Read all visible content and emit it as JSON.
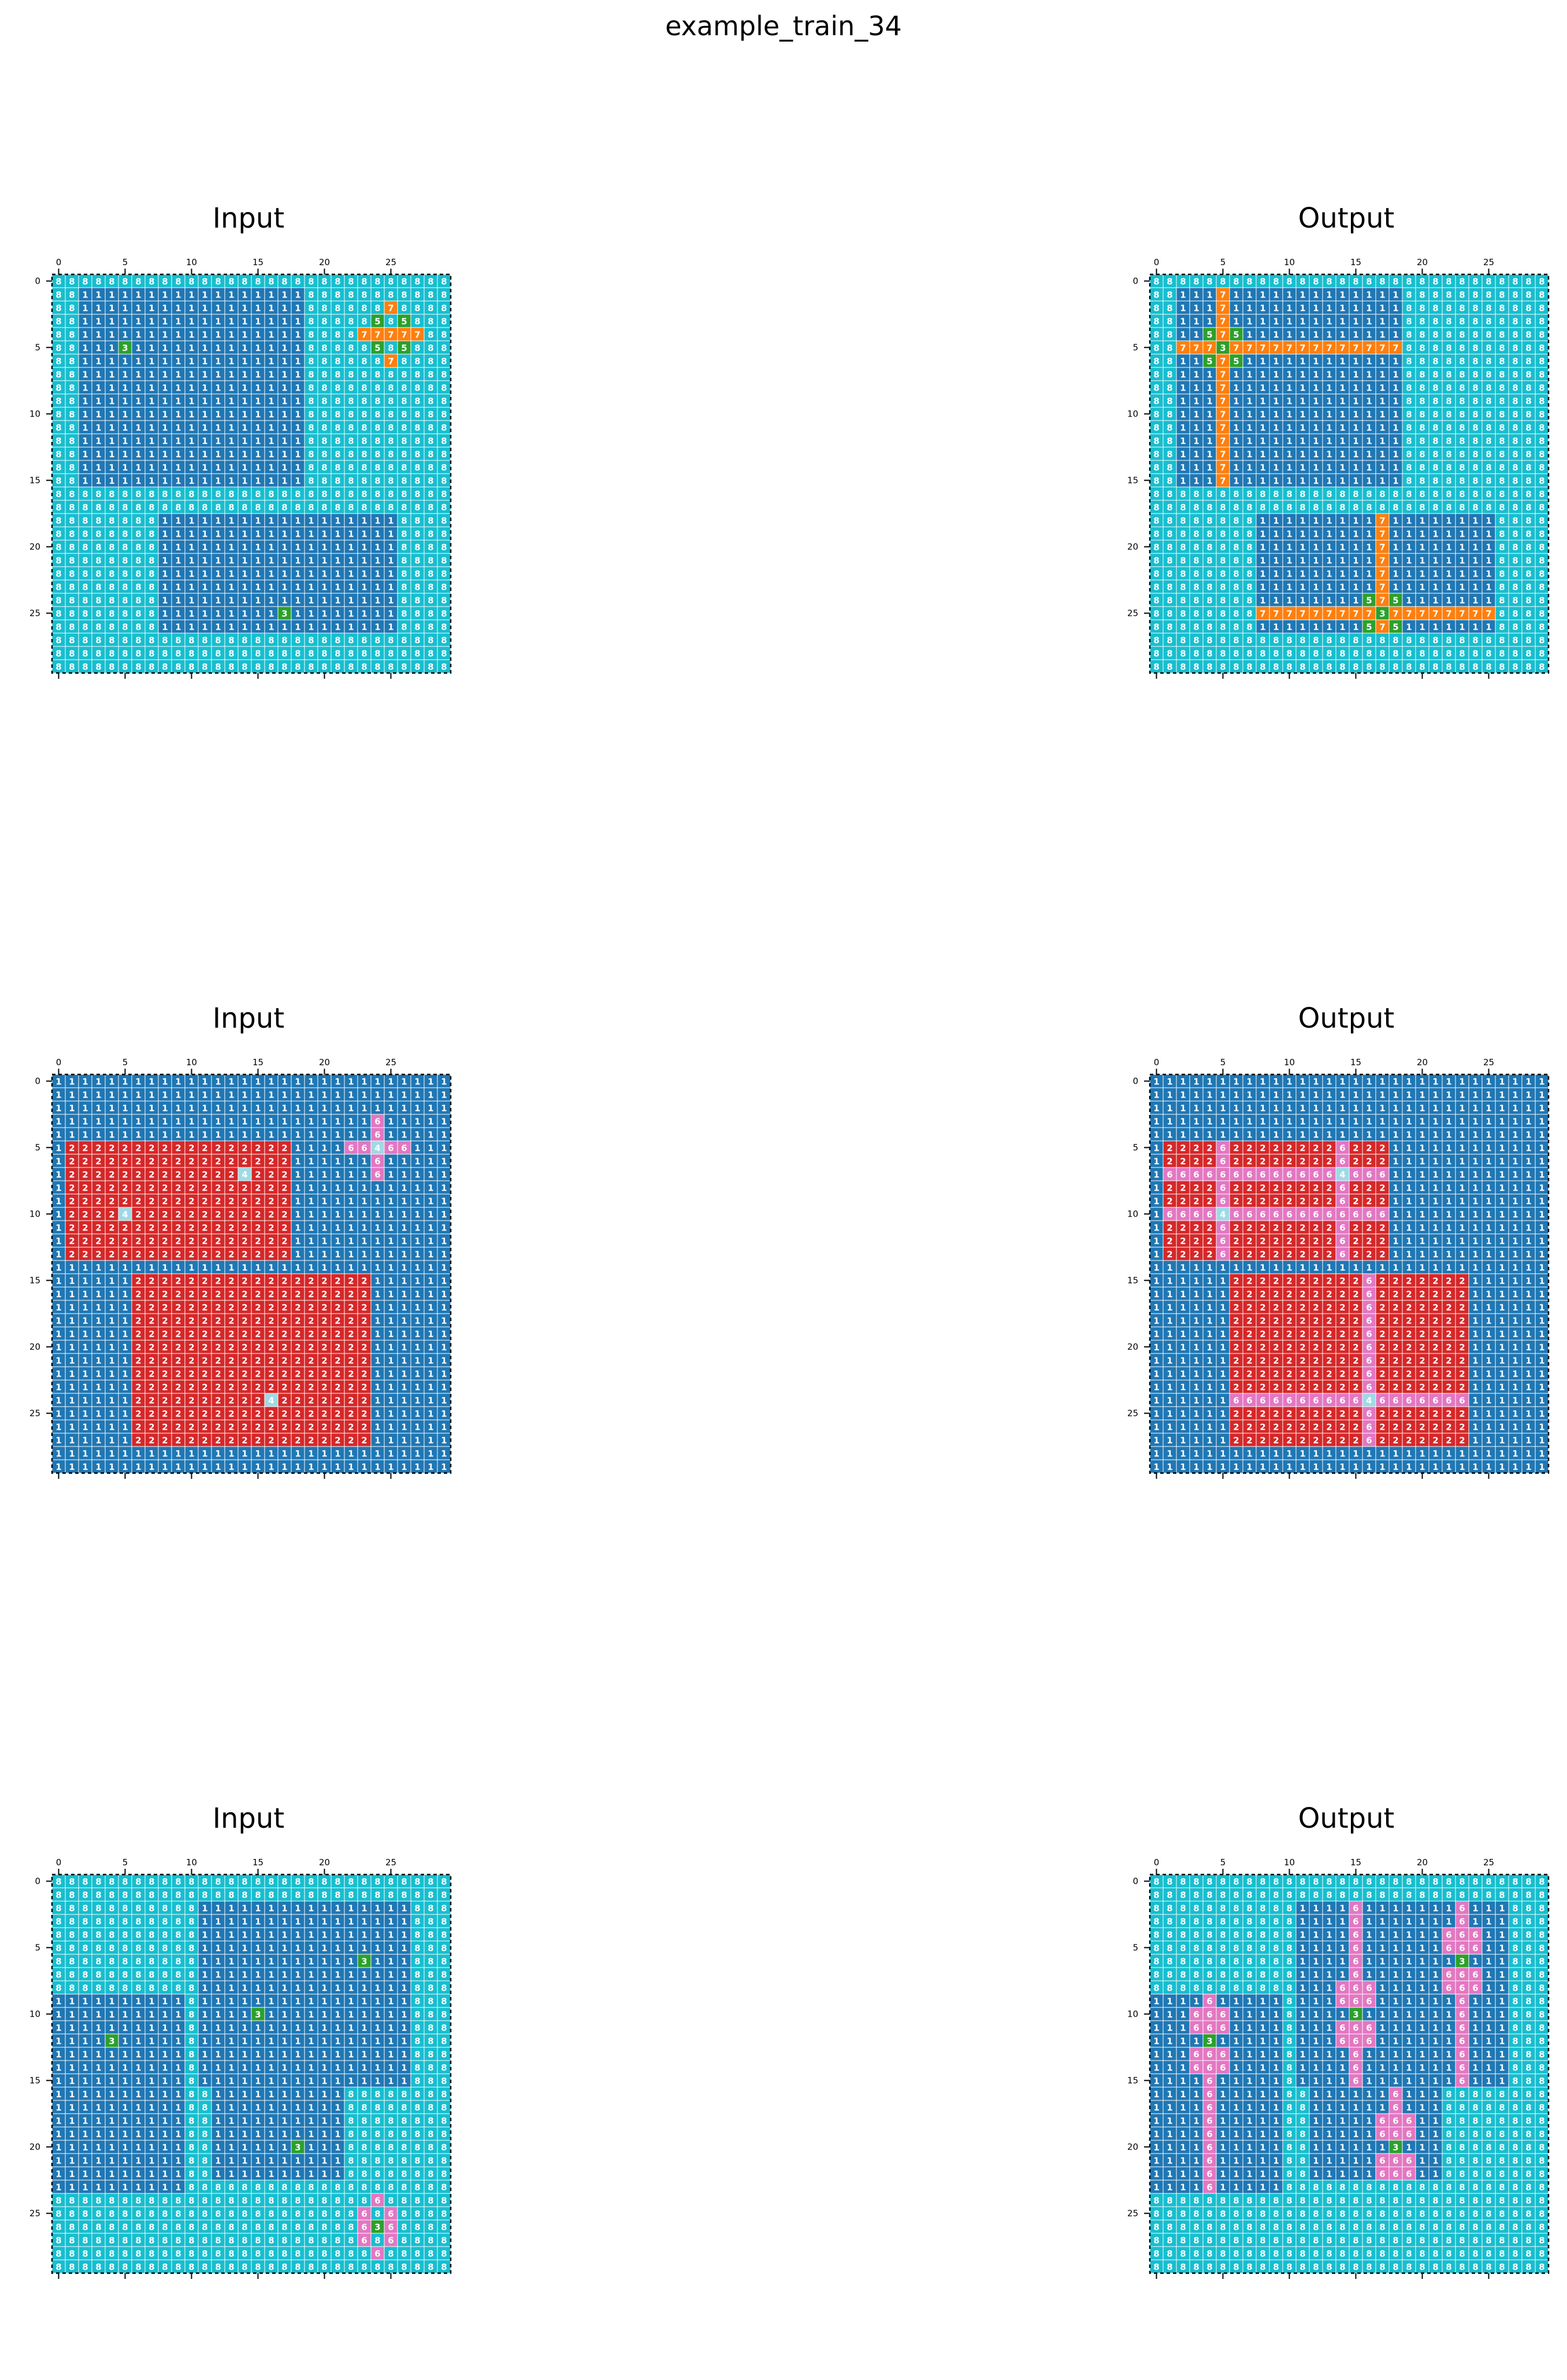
{
  "figure": {
    "title": "example_train_34"
  },
  "palette": {
    "1": "#1f77b4",
    "2": "#d62728",
    "3": "#2ca02c",
    "4": "#9edae5",
    "5": "#2ca02c",
    "6": "#e377c2",
    "7": "#ff7f0e",
    "8": "#17becf"
  },
  "tick_labels": [
    "0",
    "5",
    "10",
    "15",
    "20",
    "25"
  ],
  "panels": [
    {
      "title": "Input",
      "rows": 30,
      "cols": 30,
      "bg": 8,
      "rects": [
        [
          1,
          2,
          15,
          18,
          1
        ],
        [
          18,
          8,
          26,
          25,
          1
        ]
      ],
      "cells": [
        [
          5,
          5,
          3
        ],
        [
          25,
          17,
          3
        ],
        [
          2,
          25,
          7
        ],
        [
          3,
          24,
          5
        ],
        [
          3,
          26,
          5
        ],
        [
          4,
          23,
          7
        ],
        [
          4,
          24,
          7
        ],
        [
          4,
          25,
          7
        ],
        [
          4,
          26,
          7
        ],
        [
          4,
          27,
          7
        ],
        [
          5,
          24,
          5
        ],
        [
          5,
          26,
          5
        ],
        [
          6,
          25,
          7
        ]
      ]
    },
    {
      "title": "Output",
      "rows": 30,
      "cols": 30,
      "bg": 8,
      "rects": [
        [
          1,
          2,
          15,
          18,
          1
        ],
        [
          18,
          8,
          26,
          25,
          1
        ],
        [
          1,
          5,
          15,
          5,
          7
        ],
        [
          5,
          2,
          5,
          18,
          7
        ],
        [
          18,
          17,
          26,
          17,
          7
        ],
        [
          25,
          8,
          25,
          25,
          7
        ]
      ],
      "cells": [
        [
          4,
          4,
          5
        ],
        [
          4,
          6,
          5
        ],
        [
          6,
          4,
          5
        ],
        [
          6,
          6,
          5
        ],
        [
          5,
          5,
          3
        ],
        [
          24,
          16,
          5
        ],
        [
          24,
          18,
          5
        ],
        [
          26,
          16,
          5
        ],
        [
          26,
          18,
          5
        ],
        [
          25,
          17,
          3
        ]
      ]
    },
    {
      "title": "Input",
      "rows": 30,
      "cols": 30,
      "bg": 1,
      "rects": [
        [
          5,
          1,
          13,
          17,
          2
        ],
        [
          15,
          6,
          27,
          23,
          2
        ]
      ],
      "cells": [
        [
          7,
          14,
          4
        ],
        [
          10,
          5,
          4
        ],
        [
          24,
          16,
          4
        ],
        [
          3,
          24,
          6
        ],
        [
          4,
          24,
          6
        ],
        [
          5,
          22,
          6
        ],
        [
          5,
          23,
          6
        ],
        [
          5,
          24,
          4
        ],
        [
          5,
          25,
          6
        ],
        [
          5,
          26,
          6
        ],
        [
          6,
          24,
          6
        ],
        [
          7,
          24,
          6
        ]
      ]
    },
    {
      "title": "Output",
      "rows": 30,
      "cols": 30,
      "bg": 1,
      "rects": [
        [
          5,
          1,
          13,
          17,
          2
        ],
        [
          15,
          6,
          27,
          23,
          2
        ],
        [
          5,
          14,
          13,
          14,
          6
        ],
        [
          7,
          1,
          7,
          17,
          6
        ],
        [
          5,
          5,
          13,
          5,
          6
        ],
        [
          10,
          1,
          10,
          17,
          6
        ],
        [
          15,
          16,
          27,
          16,
          6
        ],
        [
          24,
          6,
          24,
          23,
          6
        ]
      ],
      "cells": [
        [
          7,
          14,
          4
        ],
        [
          10,
          5,
          4
        ],
        [
          24,
          16,
          4
        ]
      ]
    },
    {
      "title": "Input",
      "rows": 30,
      "cols": 30,
      "bg": 8,
      "rects": [
        [
          2,
          11,
          15,
          26,
          1
        ],
        [
          9,
          0,
          23,
          9,
          1
        ],
        [
          16,
          12,
          22,
          21,
          1
        ]
      ],
      "cells": [
        [
          6,
          23,
          3
        ],
        [
          10,
          15,
          3
        ],
        [
          12,
          4,
          3
        ],
        [
          20,
          18,
          3
        ],
        [
          24,
          24,
          6
        ],
        [
          25,
          23,
          6
        ],
        [
          25,
          25,
          6
        ],
        [
          26,
          23,
          6
        ],
        [
          26,
          24,
          3
        ],
        [
          26,
          25,
          6
        ],
        [
          27,
          23,
          6
        ],
        [
          27,
          25,
          6
        ],
        [
          28,
          24,
          6
        ]
      ]
    },
    {
      "title": "Output",
      "rows": 30,
      "cols": 30,
      "bg": 8,
      "rects": [
        [
          2,
          11,
          15,
          26,
          1
        ],
        [
          9,
          0,
          23,
          9,
          1
        ],
        [
          16,
          12,
          22,
          21,
          1
        ],
        [
          2,
          15,
          15,
          15,
          6
        ],
        [
          2,
          23,
          15,
          23,
          6
        ],
        [
          9,
          4,
          23,
          4,
          6
        ],
        [
          16,
          18,
          22,
          18,
          6
        ]
      ],
      "cells": [
        [
          4,
          22,
          6
        ],
        [
          5,
          22,
          6
        ],
        [
          7,
          22,
          6
        ],
        [
          8,
          22,
          6
        ],
        [
          4,
          24,
          6
        ],
        [
          5,
          24,
          6
        ],
        [
          7,
          24,
          6
        ],
        [
          8,
          24,
          6
        ],
        [
          6,
          23,
          3
        ],
        [
          8,
          14,
          6
        ],
        [
          9,
          14,
          6
        ],
        [
          11,
          14,
          6
        ],
        [
          12,
          14,
          6
        ],
        [
          8,
          16,
          6
        ],
        [
          9,
          16,
          6
        ],
        [
          11,
          16,
          6
        ],
        [
          12,
          16,
          6
        ],
        [
          10,
          15,
          3
        ],
        [
          10,
          3,
          6
        ],
        [
          11,
          3,
          6
        ],
        [
          13,
          3,
          6
        ],
        [
          14,
          3,
          6
        ],
        [
          10,
          5,
          6
        ],
        [
          11,
          5,
          6
        ],
        [
          13,
          5,
          6
        ],
        [
          14,
          5,
          6
        ],
        [
          12,
          4,
          3
        ],
        [
          18,
          17,
          6
        ],
        [
          19,
          17,
          6
        ],
        [
          21,
          17,
          6
        ],
        [
          22,
          17,
          6
        ],
        [
          18,
          19,
          6
        ],
        [
          19,
          19,
          6
        ],
        [
          21,
          19,
          6
        ],
        [
          22,
          19,
          6
        ],
        [
          20,
          18,
          3
        ]
      ]
    }
  ]
}
